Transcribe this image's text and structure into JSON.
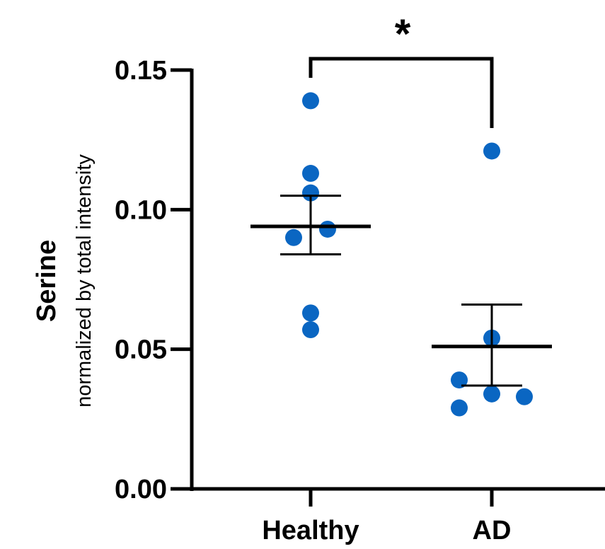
{
  "chart_data": {
    "type": "scatter",
    "ylabel": "Serine",
    "ylabel_sub": "normalized by total intensity",
    "ylim": [
      0,
      0.15
    ],
    "yticks": [
      "0.00",
      "0.05",
      "0.10",
      "0.15"
    ],
    "categories": [
      "Healthy",
      "AD"
    ],
    "groups": [
      {
        "name": "Healthy",
        "points": [
          0.139,
          0.113,
          0.106,
          0.093,
          0.09,
          0.063,
          0.057
        ],
        "mean": 0.094,
        "sem_upper": 0.105,
        "sem_lower": 0.084
      },
      {
        "name": "AD",
        "points": [
          0.121,
          0.054,
          0.039,
          0.034,
          0.033,
          0.029
        ],
        "mean": 0.051,
        "sem_upper": 0.066,
        "sem_lower": 0.037
      }
    ],
    "significance": {
      "label": "*",
      "between": [
        "Healthy",
        "AD"
      ]
    },
    "point_color": "#0a66c2",
    "axis_color": "#000000"
  }
}
